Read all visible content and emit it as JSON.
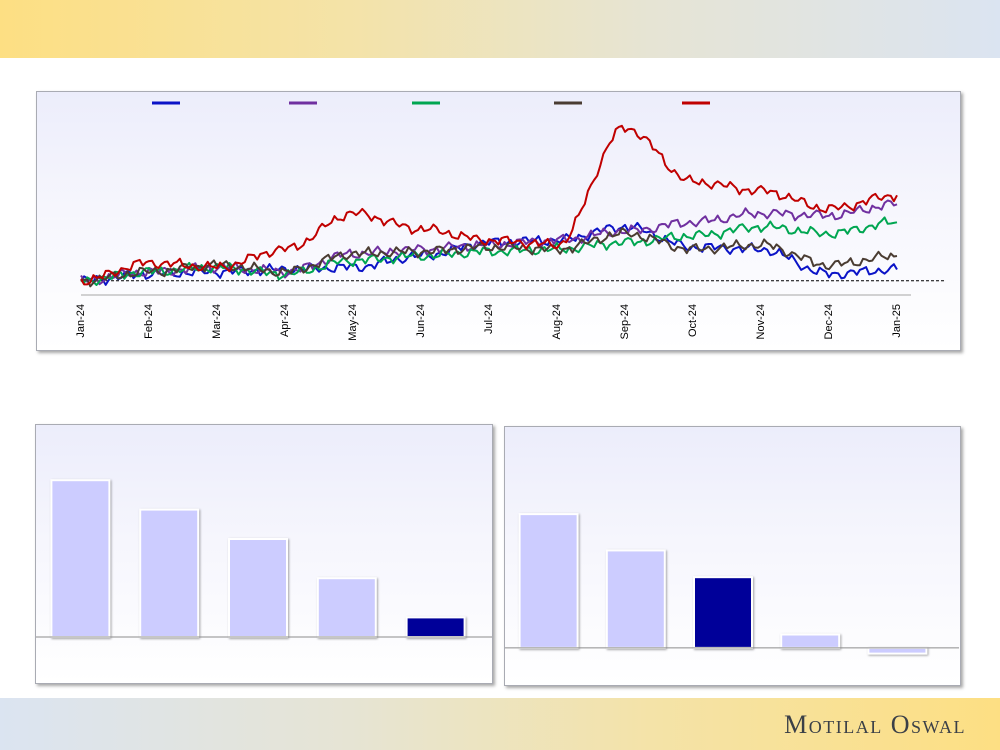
{
  "brand": {
    "name": "Motilal Oswal"
  },
  "chart_data": [
    {
      "type": "line",
      "x": [
        "Jan-24",
        "Feb-24",
        "Mar-24",
        "Apr-24",
        "May-24",
        "Jun-24",
        "Jul-24",
        "Aug-24",
        "Sep-24",
        "Oct-24",
        "Nov-24",
        "Dec-24",
        "Jan-25"
      ],
      "baseline": 100,
      "ylim": [
        95,
        175
      ],
      "grid": false,
      "legend_position": "top",
      "series": [
        {
          "color": "#0b13c7",
          "values": [
            100,
            103,
            104,
            105,
            106,
            111,
            117,
            118,
            124,
            115,
            114,
            103,
            105
          ]
        },
        {
          "color": "#7030a0",
          "values": [
            100,
            104,
            106,
            104,
            112,
            114,
            116,
            118,
            122,
            126,
            130,
            129,
            134
          ]
        },
        {
          "color": "#00a651",
          "values": [
            100,
            104,
            106,
            103,
            109,
            111,
            113,
            114,
            117,
            120,
            124,
            121,
            126
          ]
        },
        {
          "color": "#4a3c32",
          "values": [
            100,
            104,
            107,
            104,
            112,
            113,
            115,
            114,
            121,
            114,
            116,
            107,
            111
          ]
        },
        {
          "color": "#c00000",
          "values": [
            100,
            108,
            106,
            114,
            130,
            123,
            118,
            116,
            168,
            144,
            140,
            132,
            138
          ]
        }
      ]
    },
    {
      "type": "bar",
      "categories": [
        "",
        "",
        "",
        "",
        ""
      ],
      "values": [
        80,
        65,
        50,
        30,
        10
      ],
      "ylim": [
        0,
        100
      ],
      "colors": [
        "#ccccff",
        "#ccccff",
        "#ccccff",
        "#ccccff",
        "#000099"
      ]
    },
    {
      "type": "bar",
      "categories": [
        "",
        "",
        "",
        "",
        ""
      ],
      "values": [
        70,
        51,
        37,
        7,
        -3
      ],
      "ylim": [
        -10,
        80
      ],
      "colors": [
        "#ccccff",
        "#ccccff",
        "#000099",
        "#ccccff",
        "#ccccff"
      ]
    }
  ]
}
